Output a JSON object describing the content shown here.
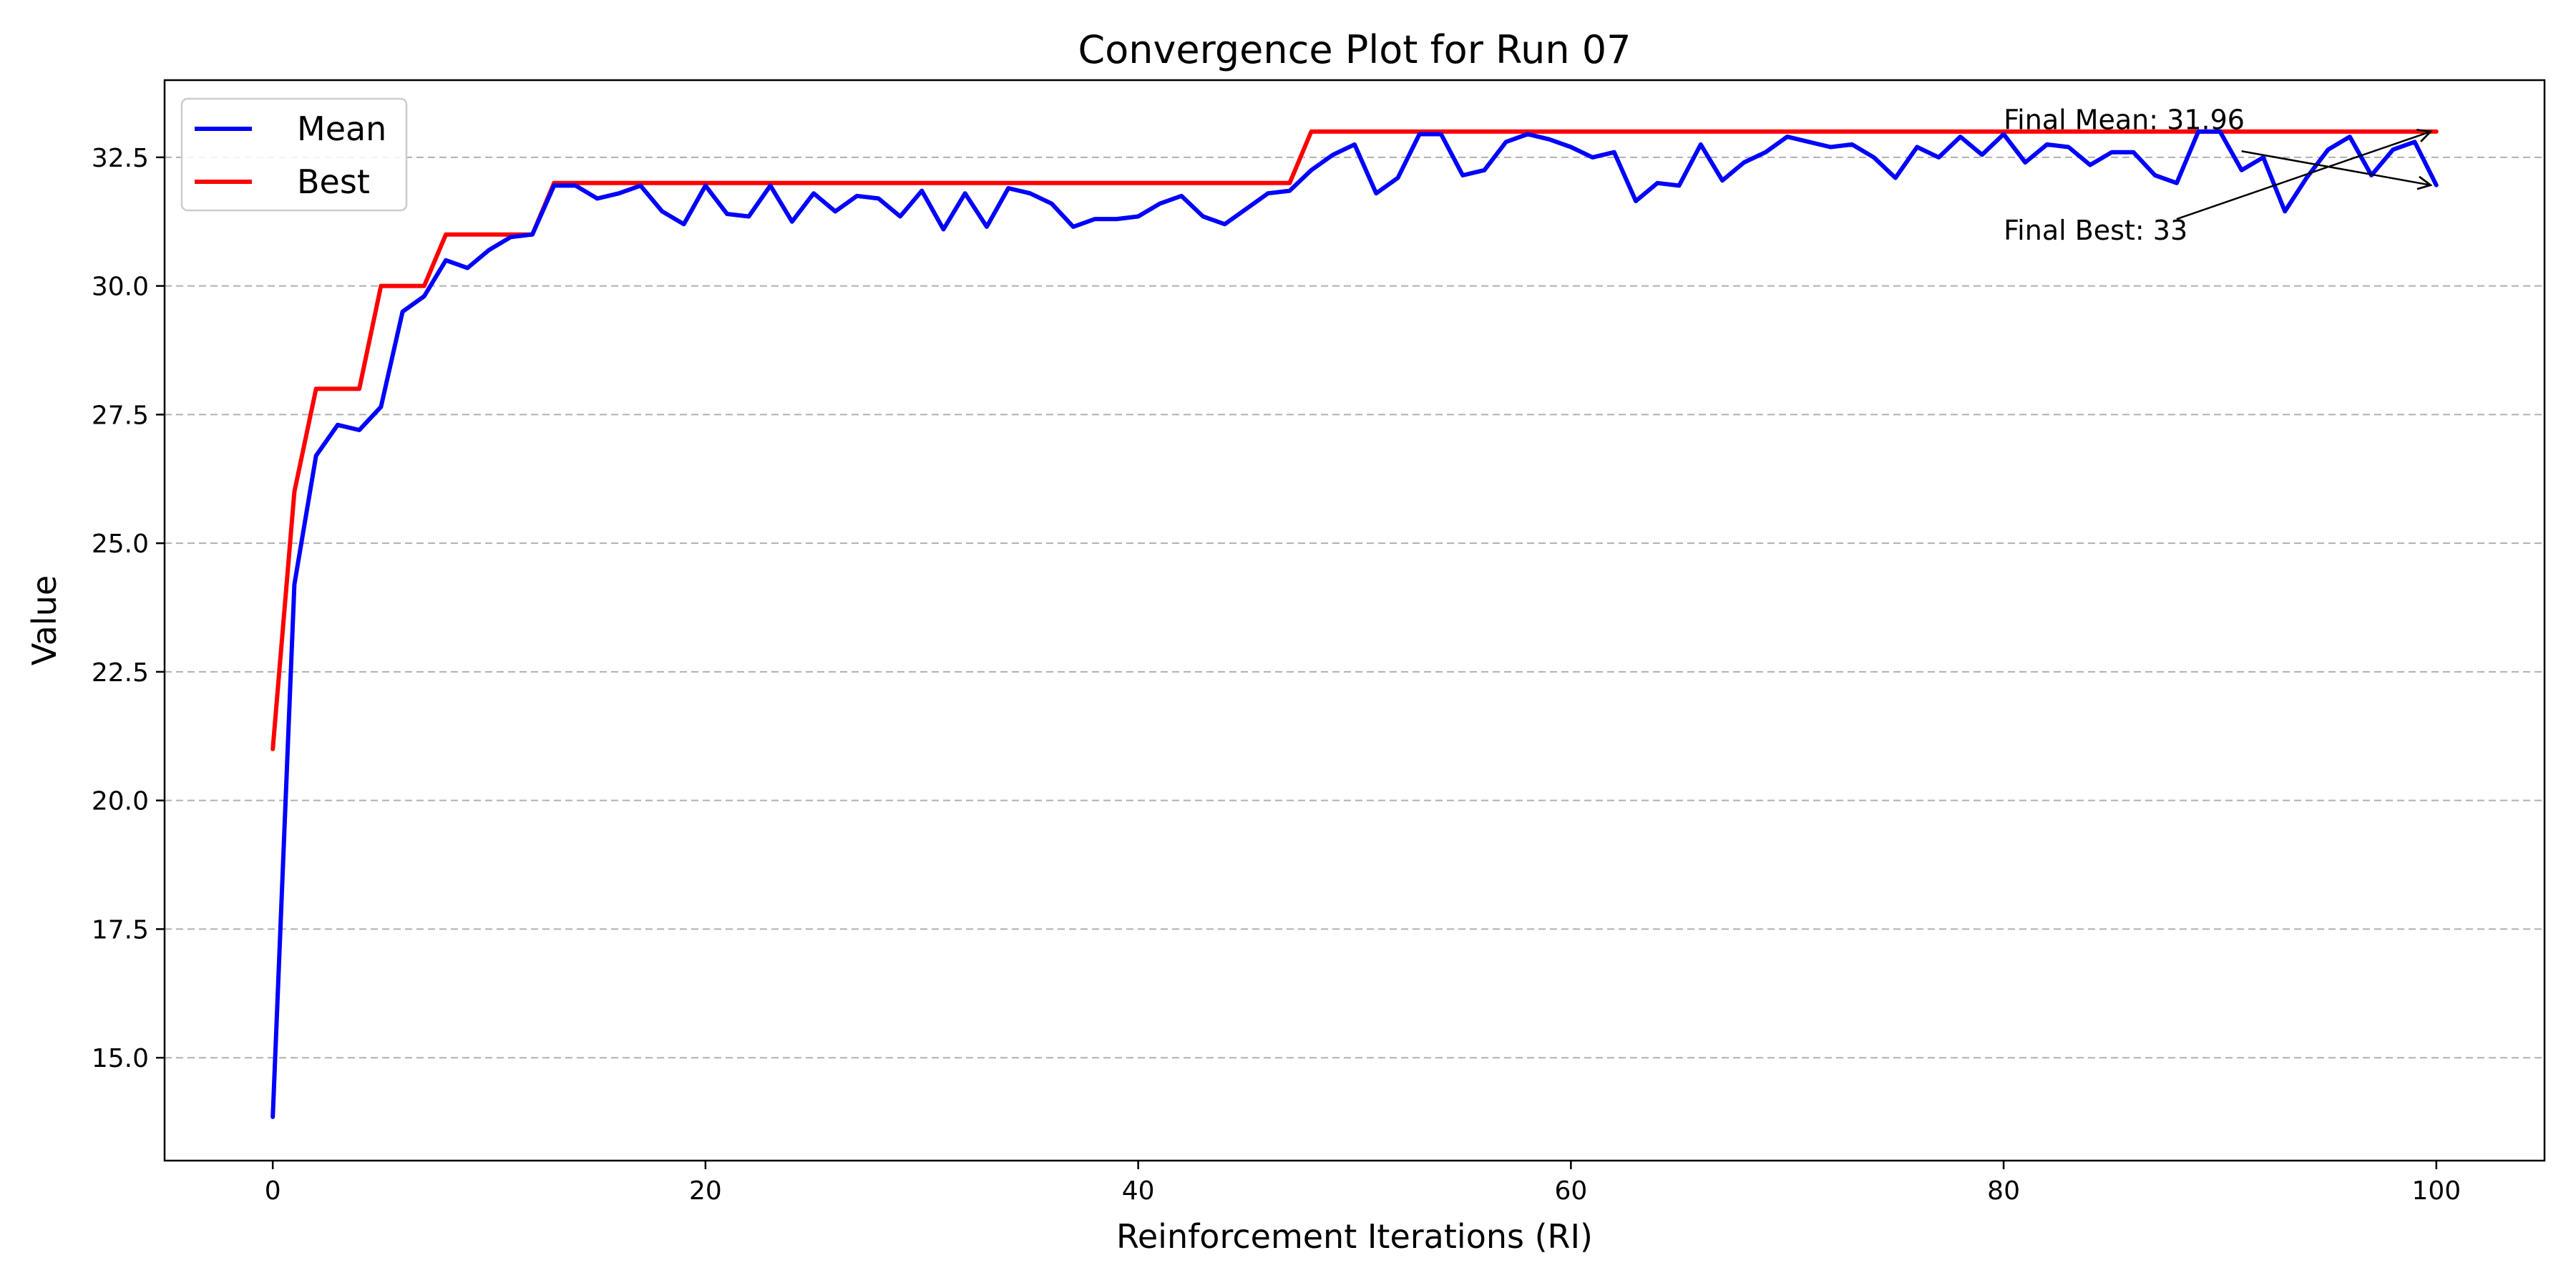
{
  "chart_data": {
    "type": "line",
    "title": "Convergence Plot for Run 07",
    "xlabel": "Reinforcement Iterations (RI)",
    "ylabel": "Value",
    "xlim": [
      -5,
      105
    ],
    "ylim": [
      13.0,
      34.0
    ],
    "xticks": [
      0,
      20,
      40,
      60,
      80,
      100
    ],
    "xtick_labels": [
      "0",
      "20",
      "40",
      "60",
      "80",
      "100"
    ],
    "yticks": [
      15.0,
      17.5,
      20.0,
      22.5,
      25.0,
      27.5,
      30.0,
      32.5
    ],
    "ytick_labels": [
      "15.0",
      "17.5",
      "20.0",
      "22.5",
      "25.0",
      "27.5",
      "30.0",
      "32.5"
    ],
    "grid": "y-dashed",
    "legend_position": "top-left",
    "series": [
      {
        "name": "Mean",
        "color": "#0000ff",
        "values": [
          13.85,
          24.2,
          26.7,
          27.3,
          27.2,
          27.65,
          29.5,
          29.8,
          30.5,
          30.35,
          30.7,
          30.95,
          31.0,
          31.95,
          31.95,
          31.7,
          31.8,
          31.95,
          31.45,
          31.2,
          31.95,
          31.4,
          31.35,
          31.95,
          31.25,
          31.8,
          31.45,
          31.75,
          31.7,
          31.35,
          31.85,
          31.1,
          31.8,
          31.15,
          31.9,
          31.8,
          31.6,
          31.15,
          31.3,
          31.3,
          31.35,
          31.6,
          31.75,
          31.35,
          31.2,
          31.5,
          31.8,
          31.85,
          32.25,
          32.55,
          32.75,
          31.8,
          32.1,
          32.95,
          32.95,
          32.15,
          32.25,
          32.8,
          32.95,
          32.85,
          32.7,
          32.5,
          32.6,
          31.65,
          32.0,
          31.95,
          32.75,
          32.05,
          32.4,
          32.6,
          32.9,
          32.8,
          32.7,
          32.75,
          32.5,
          32.1,
          32.7,
          32.5,
          32.9,
          32.55,
          32.95,
          32.4,
          32.75,
          32.7,
          32.35,
          32.6,
          32.6,
          32.15,
          32.0,
          33.0,
          33.0,
          32.25,
          32.5,
          31.45,
          32.1,
          32.65,
          32.9,
          32.15,
          32.65,
          32.8,
          31.96
        ]
      },
      {
        "name": "Best",
        "color": "#ff0000",
        "values": [
          21,
          26,
          28,
          28,
          28,
          30,
          30,
          30,
          31,
          31,
          31,
          31,
          31,
          32,
          32,
          32,
          32,
          32,
          32,
          32,
          32,
          32,
          32,
          32,
          32,
          32,
          32,
          32,
          32,
          32,
          32,
          32,
          32,
          32,
          32,
          32,
          32,
          32,
          32,
          32,
          32,
          32,
          32,
          32,
          32,
          32,
          32,
          32,
          33,
          33,
          33,
          33,
          33,
          33,
          33,
          33,
          33,
          33,
          33,
          33,
          33,
          33,
          33,
          33,
          33,
          33,
          33,
          33,
          33,
          33,
          33,
          33,
          33,
          33,
          33,
          33,
          33,
          33,
          33,
          33,
          33,
          33,
          33,
          33,
          33,
          33,
          33,
          33,
          33,
          33,
          33,
          33,
          33,
          33,
          33,
          33,
          33,
          33,
          33,
          33,
          33
        ]
      }
    ],
    "annotations": [
      {
        "text": "Final Mean: 31.96",
        "text_at": [
          80,
          33.05
        ],
        "arrow_to": [
          100,
          31.96
        ],
        "arrow_from": [
          91,
          32.62
        ]
      },
      {
        "text": "Final Best: 33",
        "text_at": [
          80,
          30.9
        ],
        "arrow_to": [
          100,
          33.0
        ],
        "arrow_from": [
          88,
          31.3
        ]
      }
    ]
  }
}
